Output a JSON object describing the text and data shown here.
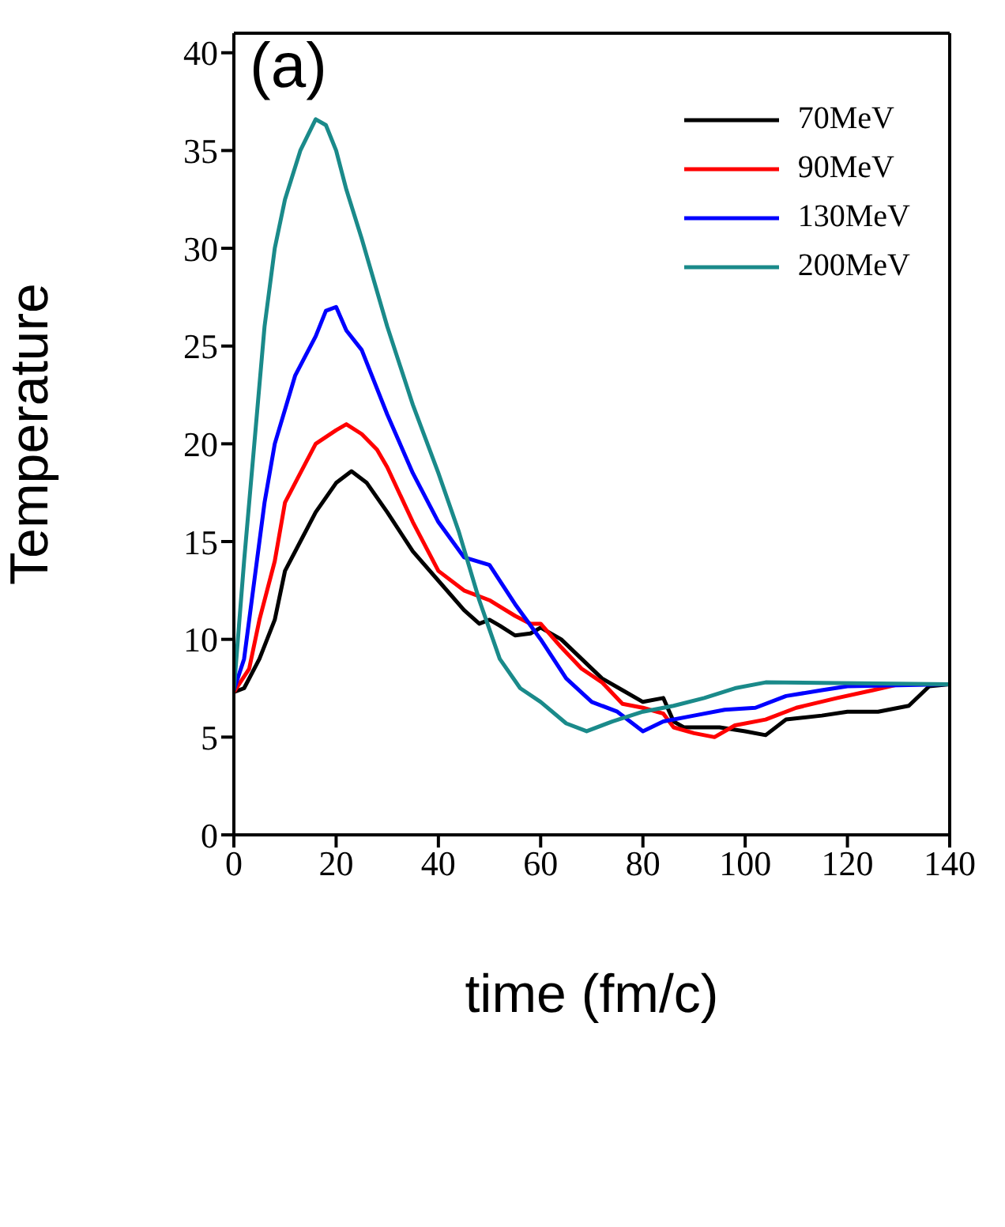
{
  "chart_data": {
    "type": "line",
    "xlabel": "time (fm/c)",
    "ylabel": "Temperature",
    "annotations": [
      "(a)"
    ],
    "xlim": [
      0,
      140
    ],
    "xticks": [
      0,
      20,
      40,
      60,
      80,
      100,
      120,
      140
    ],
    "ylim": [
      0,
      41
    ],
    "yticks": [
      0,
      5,
      10,
      15,
      20,
      25,
      30,
      35,
      40
    ],
    "legend": "top right",
    "marker": "none",
    "line_style": "solid",
    "series": [
      {
        "name": "70MeV",
        "color": "#000000",
        "x": [
          0,
          2,
          5,
          8,
          10,
          13,
          16,
          20,
          23,
          26,
          30,
          35,
          40,
          45,
          48,
          50,
          52,
          55,
          58,
          60,
          64,
          68,
          72,
          76,
          80,
          84,
          86,
          88,
          95,
          100,
          104,
          108,
          115,
          120,
          126,
          132,
          136,
          140
        ],
        "values": [
          7.3,
          7.5,
          9,
          11,
          13.5,
          15,
          16.5,
          18,
          18.6,
          18,
          16.5,
          14.5,
          13,
          11.5,
          10.8,
          11,
          10.7,
          10.2,
          10.3,
          10.6,
          10,
          9,
          8,
          7.4,
          6.8,
          7,
          5.8,
          5.5,
          5.5,
          5.3,
          5.1,
          5.9,
          6.1,
          6.3,
          6.3,
          6.6,
          7.6,
          7.7
        ]
      },
      {
        "name": "90MeV",
        "color": "#ff0000",
        "x": [
          0,
          3,
          5,
          8,
          10,
          13,
          16,
          20,
          22,
          25,
          28,
          30,
          35,
          40,
          45,
          50,
          55,
          58,
          60,
          64,
          68,
          72,
          76,
          80,
          84,
          86,
          90,
          94,
          98,
          104,
          110,
          118,
          125,
          130
        ],
        "values": [
          7.3,
          8.5,
          11,
          14,
          17,
          18.5,
          20,
          20.7,
          21,
          20.5,
          19.7,
          18.8,
          16,
          13.5,
          12.5,
          12,
          11.2,
          10.8,
          10.8,
          9.6,
          8.5,
          7.8,
          6.7,
          6.5,
          6.2,
          5.5,
          5.2,
          5,
          5.6,
          5.9,
          6.5,
          7,
          7.4,
          7.7
        ]
      },
      {
        "name": "130MeV",
        "color": "#0000ff",
        "x": [
          0,
          2,
          4,
          6,
          8,
          12,
          16,
          18,
          20,
          22,
          25,
          30,
          35,
          40,
          45,
          50,
          55,
          60,
          65,
          70,
          75,
          80,
          84,
          90,
          96,
          102,
          108,
          115,
          120,
          140
        ],
        "values": [
          7.4,
          9,
          13,
          17,
          20,
          23.5,
          25.5,
          26.8,
          27,
          25.8,
          24.8,
          21.5,
          18.5,
          16,
          14.2,
          13.8,
          11.8,
          10,
          8,
          6.8,
          6.3,
          5.3,
          5.8,
          6.1,
          6.4,
          6.5,
          7.1,
          7.4,
          7.6,
          7.7
        ]
      },
      {
        "name": "200MeV",
        "color": "#1a8a8a",
        "x": [
          0,
          2,
          4,
          6,
          8,
          10,
          13,
          16,
          18,
          20,
          22,
          25,
          30,
          35,
          40,
          44,
          48,
          52,
          56,
          60,
          65,
          69,
          74,
          80,
          86,
          92,
          98,
          104,
          140
        ],
        "values": [
          7.4,
          14,
          20,
          26,
          30,
          32.5,
          35,
          36.6,
          36.3,
          35,
          33,
          30.5,
          26,
          22,
          18.5,
          15.5,
          12,
          9,
          7.5,
          6.8,
          5.7,
          5.3,
          5.8,
          6.3,
          6.6,
          7,
          7.5,
          7.8,
          7.7
        ]
      }
    ]
  }
}
